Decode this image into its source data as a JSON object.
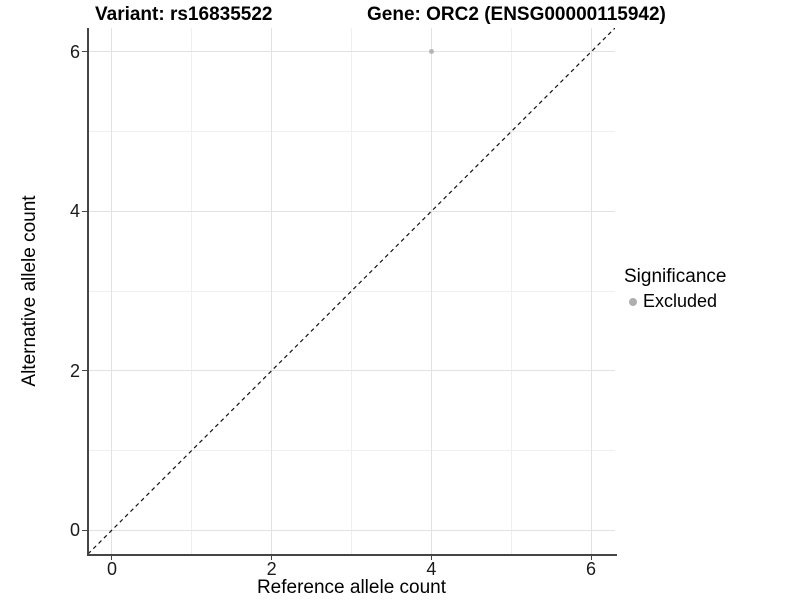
{
  "header": {
    "variant_title": "Variant: rs16835522",
    "gene_title": "Gene: ORC2 (ENSG00000115942)"
  },
  "chart_data": {
    "type": "scatter",
    "title": "Variant: rs16835522    Gene: ORC2 (ENSG00000115942)",
    "xlabel": "Reference allele count",
    "ylabel": "Alternative allele count",
    "xlim": [
      -0.3,
      6.3
    ],
    "ylim": [
      -0.3,
      6.3
    ],
    "x_major_ticks": [
      0,
      2,
      4,
      6
    ],
    "y_major_ticks": [
      0,
      2,
      4,
      6
    ],
    "x_minor_ticks": [
      1,
      3,
      5
    ],
    "y_minor_ticks": [
      1,
      3,
      5
    ],
    "grid": true,
    "points": [
      {
        "x": 4,
        "y": 6,
        "significance": "Excluded",
        "color": "#b5b5b5"
      }
    ],
    "reference_line": {
      "style": "dashed",
      "from": [
        -0.3,
        -0.3
      ],
      "to": [
        6.3,
        6.3
      ],
      "color": "#111111"
    },
    "legend": {
      "title": "Significance",
      "position": "right",
      "items": [
        {
          "label": "Excluded",
          "color": "#aeaeae"
        }
      ]
    },
    "colors": {
      "axis_line": "#454545",
      "grid_major": "#e2e2e2",
      "grid_minor": "#efefef",
      "background": "#ffffff"
    }
  }
}
